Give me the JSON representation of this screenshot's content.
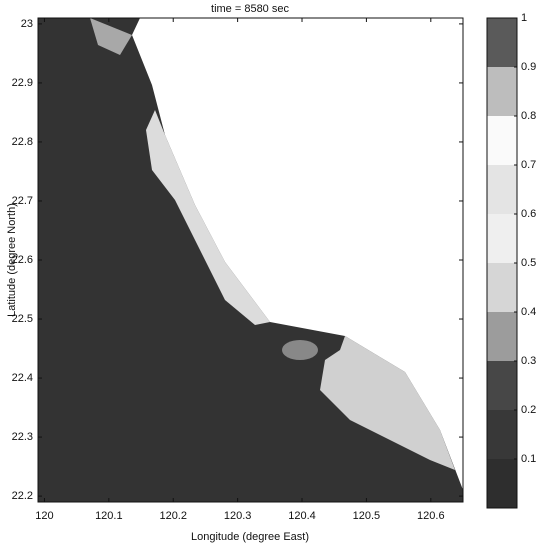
{
  "chart_data": {
    "type": "contour",
    "title": "time = 8580 sec",
    "xlabel": "Longitude (degree East)",
    "ylabel": "Latitude (degree North)",
    "xlim": [
      119.99,
      120.65
    ],
    "xticks": [
      120,
      120.1,
      120.2,
      120.3,
      120.4,
      120.5,
      120.6
    ],
    "ylim": [
      22.19,
      23.01
    ],
    "yticks": [
      22.2,
      22.3,
      22.4,
      22.5,
      22.6,
      22.7,
      22.8,
      22.9,
      23
    ],
    "colorbar": {
      "lim": [
        0,
        1
      ],
      "ticks": [
        0.1,
        0.2,
        0.3,
        0.4,
        0.5,
        0.6,
        0.7,
        0.8,
        0.9,
        1
      ],
      "colors": [
        "#2e2e2e",
        "#383838",
        "#474747",
        "#9c9c9c",
        "#d6d6d6",
        "#efefef",
        "#e4e4e4",
        "#fafafa",
        "#bdbdbd",
        "#5a5a5a"
      ]
    }
  }
}
